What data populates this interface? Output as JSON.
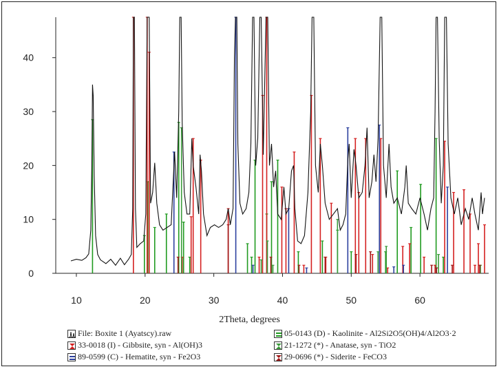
{
  "chart_data": {
    "type": "line",
    "title": "",
    "xlabel": "2Theta, degrees",
    "ylabel": "",
    "xlim": [
      7,
      70
    ],
    "ylim": [
      0,
      47.5
    ],
    "x_ticks": [
      "10",
      "20",
      "30",
      "40",
      "50",
      "60"
    ],
    "y_ticks": [
      "0",
      "10",
      "20",
      "30",
      "40"
    ],
    "grid": false,
    "legend_position": "bottom",
    "pattern": [
      [
        9.2,
        2.3
      ],
      [
        10.0,
        2.6
      ],
      [
        10.8,
        2.4
      ],
      [
        11.4,
        2.9
      ],
      [
        11.8,
        3.6
      ],
      [
        12.1,
        8
      ],
      [
        12.25,
        20
      ],
      [
        12.35,
        35
      ],
      [
        12.45,
        33
      ],
      [
        12.6,
        18
      ],
      [
        12.8,
        7
      ],
      [
        13.1,
        3.5
      ],
      [
        13.5,
        2.5
      ],
      [
        14.3,
        1.8
      ],
      [
        15.0,
        2.6
      ],
      [
        15.7,
        1.5
      ],
      [
        16.4,
        2.8
      ],
      [
        17.0,
        1.6
      ],
      [
        17.6,
        2.6
      ],
      [
        18.0,
        3.5
      ],
      [
        18.2,
        12
      ],
      [
        18.3,
        47.5
      ],
      [
        18.45,
        47.5
      ],
      [
        18.6,
        12
      ],
      [
        18.8,
        4.8
      ],
      [
        19.3,
        5.5
      ],
      [
        19.8,
        6
      ],
      [
        20.1,
        11
      ],
      [
        20.3,
        47.5
      ],
      [
        20.6,
        47.5
      ],
      [
        20.8,
        13
      ],
      [
        21.1,
        15
      ],
      [
        21.4,
        20.5
      ],
      [
        21.7,
        13
      ],
      [
        22.1,
        9
      ],
      [
        22.6,
        8
      ],
      [
        23.2,
        8.5
      ],
      [
        23.8,
        9
      ],
      [
        24.3,
        22.5
      ],
      [
        24.6,
        14
      ],
      [
        24.9,
        30
      ],
      [
        25.05,
        47.5
      ],
      [
        25.25,
        47.5
      ],
      [
        25.4,
        28
      ],
      [
        25.7,
        15
      ],
      [
        26.1,
        11
      ],
      [
        26.5,
        11
      ],
      [
        26.8,
        25
      ],
      [
        27.0,
        20
      ],
      [
        27.4,
        16
      ],
      [
        27.8,
        11
      ],
      [
        28.0,
        22
      ],
      [
        28.2,
        19
      ],
      [
        28.5,
        11
      ],
      [
        29.0,
        7
      ],
      [
        29.5,
        8.5
      ],
      [
        30.1,
        9
      ],
      [
        30.7,
        8.5
      ],
      [
        31.3,
        9
      ],
      [
        31.8,
        10
      ],
      [
        32.1,
        12
      ],
      [
        32.4,
        9
      ],
      [
        32.8,
        12
      ],
      [
        33.0,
        40
      ],
      [
        33.15,
        47.5
      ],
      [
        33.35,
        47.5
      ],
      [
        33.5,
        24
      ],
      [
        33.8,
        13
      ],
      [
        34.2,
        11
      ],
      [
        34.7,
        12
      ],
      [
        35.1,
        15
      ],
      [
        35.4,
        24
      ],
      [
        35.65,
        47.5
      ],
      [
        35.85,
        47.5
      ],
      [
        36.1,
        20
      ],
      [
        36.4,
        25
      ],
      [
        36.7,
        47.5
      ],
      [
        36.9,
        47.5
      ],
      [
        37.2,
        22
      ],
      [
        37.6,
        47.5
      ],
      [
        37.85,
        47.5
      ],
      [
        38.1,
        20
      ],
      [
        38.4,
        24
      ],
      [
        38.7,
        16
      ],
      [
        39.0,
        19
      ],
      [
        39.3,
        11
      ],
      [
        39.8,
        10
      ],
      [
        40.2,
        16
      ],
      [
        40.5,
        11
      ],
      [
        40.9,
        12
      ],
      [
        41.3,
        19
      ],
      [
        41.6,
        20
      ],
      [
        41.8,
        12
      ],
      [
        42.2,
        6
      ],
      [
        42.7,
        5.5
      ],
      [
        43.2,
        7
      ],
      [
        43.7,
        15
      ],
      [
        44.1,
        30
      ],
      [
        44.3,
        47.5
      ],
      [
        44.55,
        47.5
      ],
      [
        44.8,
        20
      ],
      [
        45.2,
        15
      ],
      [
        45.5,
        24
      ],
      [
        45.8,
        20
      ],
      [
        46.2,
        13
      ],
      [
        46.8,
        10
      ],
      [
        47.4,
        11
      ],
      [
        48.0,
        12
      ],
      [
        48.4,
        8
      ],
      [
        48.8,
        9
      ],
      [
        49.2,
        11
      ],
      [
        49.5,
        21
      ],
      [
        49.7,
        24
      ],
      [
        50.0,
        14
      ],
      [
        50.4,
        23
      ],
      [
        50.7,
        20
      ],
      [
        51.1,
        14
      ],
      [
        51.6,
        15
      ],
      [
        52.0,
        20
      ],
      [
        52.3,
        27
      ],
      [
        52.6,
        14
      ],
      [
        53.0,
        17
      ],
      [
        53.3,
        22
      ],
      [
        53.6,
        17
      ],
      [
        53.9,
        25
      ],
      [
        54.2,
        47.5
      ],
      [
        54.45,
        47.5
      ],
      [
        54.7,
        20
      ],
      [
        55.1,
        14
      ],
      [
        55.5,
        24
      ],
      [
        55.8,
        16
      ],
      [
        56.2,
        13
      ],
      [
        56.7,
        14
      ],
      [
        57.3,
        11
      ],
      [
        57.8,
        16
      ],
      [
        58.0,
        20
      ],
      [
        58.3,
        13
      ],
      [
        58.8,
        12
      ],
      [
        59.4,
        11
      ],
      [
        60.0,
        14
      ],
      [
        60.6,
        11
      ],
      [
        61.1,
        8
      ],
      [
        61.6,
        12
      ],
      [
        62.0,
        14
      ],
      [
        62.2,
        30
      ],
      [
        62.35,
        47.5
      ],
      [
        62.55,
        47.5
      ],
      [
        62.8,
        25
      ],
      [
        63.1,
        13
      ],
      [
        63.4,
        20
      ],
      [
        63.6,
        47.5
      ],
      [
        63.85,
        47.5
      ],
      [
        64.1,
        24
      ],
      [
        64.5,
        14
      ],
      [
        65.0,
        11
      ],
      [
        65.5,
        14
      ],
      [
        66.0,
        9
      ],
      [
        66.6,
        12
      ],
      [
        67.1,
        10
      ],
      [
        67.6,
        14
      ],
      [
        68.0,
        11
      ],
      [
        68.5,
        8
      ],
      [
        68.9,
        15
      ],
      [
        69.1,
        11
      ],
      [
        69.4,
        14
      ]
    ],
    "reference_lines": [
      {
        "pattern": "05-0143 (D) - Kaolinite - Al2Si2O5(OH)4/Al2O3·2",
        "color": "#1f9a1f",
        "peaks": [
          [
            12.35,
            28.5
          ],
          [
            19.9,
            7
          ],
          [
            20.4,
            17
          ],
          [
            21.4,
            8.5
          ],
          [
            23.1,
            11
          ],
          [
            24.9,
            28
          ],
          [
            25.6,
            9.5
          ],
          [
            26.5,
            3
          ],
          [
            34.9,
            5.5
          ],
          [
            35.5,
            3
          ],
          [
            36.0,
            21
          ],
          [
            37.7,
            11
          ],
          [
            38.4,
            17
          ],
          [
            39.3,
            21
          ],
          [
            42.3,
            4
          ],
          [
            45.8,
            6
          ],
          [
            48.0,
            8
          ],
          [
            50.0,
            4
          ],
          [
            55.0,
            4
          ],
          [
            56.7,
            19
          ],
          [
            58.7,
            8.5
          ],
          [
            60.1,
            16.5
          ],
          [
            62.35,
            25
          ],
          [
            63.4,
            3
          ]
        ]
      },
      {
        "pattern": "33-0018 (I) - Gibbsite, syn - Al(OH)3",
        "color": "#d42020",
        "peaks": [
          [
            18.3,
            47.5
          ],
          [
            20.3,
            47.5
          ],
          [
            20.6,
            41
          ],
          [
            25.4,
            3
          ],
          [
            26.7,
            10.5
          ],
          [
            27.0,
            25
          ],
          [
            28.1,
            21
          ],
          [
            32.1,
            12
          ],
          [
            36.6,
            3
          ],
          [
            37.1,
            33
          ],
          [
            37.7,
            47.5
          ],
          [
            39.9,
            16
          ],
          [
            40.5,
            12
          ],
          [
            41.7,
            22.5
          ],
          [
            43.1,
            1.5
          ],
          [
            44.2,
            33
          ],
          [
            45.5,
            25
          ],
          [
            46.3,
            3
          ],
          [
            47.1,
            13
          ],
          [
            50.6,
            25
          ],
          [
            51.1,
            15
          ],
          [
            52.1,
            25
          ],
          [
            53.1,
            3.5
          ],
          [
            54.3,
            25
          ],
          [
            55.3,
            1
          ],
          [
            57.5,
            5
          ],
          [
            58.5,
            5.5
          ],
          [
            60.6,
            3
          ],
          [
            62.2,
            1.5
          ],
          [
            63.6,
            24.5
          ],
          [
            64.9,
            15
          ],
          [
            66.4,
            15.5
          ],
          [
            67.3,
            11
          ],
          [
            68.0,
            1.5
          ],
          [
            68.5,
            5.5
          ],
          [
            69.4,
            9
          ]
        ]
      },
      {
        "pattern": "89-0599 (C) - Hematite, syn - Fe2O3",
        "color": "#2b3f9e",
        "peaks": [
          [
            24.2,
            22.5
          ],
          [
            33.2,
            47.5
          ],
          [
            35.7,
            1.5
          ],
          [
            40.9,
            12
          ],
          [
            43.5,
            1
          ],
          [
            49.5,
            27
          ],
          [
            54.1,
            27.5
          ],
          [
            56.2,
            1.2
          ],
          [
            57.6,
            1.5
          ],
          [
            62.4,
            1
          ],
          [
            64.0,
            16
          ]
        ]
      },
      {
        "pattern": "21-1272 (*) - Anatase, syn - TiO2",
        "color": "#3a9a3a",
        "peaks": [
          [
            25.3,
            27
          ],
          [
            36.9,
            2.5
          ],
          [
            37.8,
            6
          ],
          [
            38.6,
            1.5
          ],
          [
            48.0,
            10
          ],
          [
            53.9,
            4
          ],
          [
            55.1,
            5
          ],
          [
            62.7,
            3.5
          ],
          [
            68.8,
            1.5
          ]
        ]
      },
      {
        "pattern": "29-0696 (*) - Siderite - FeCO3",
        "color": "#a01818",
        "peaks": [
          [
            24.8,
            3
          ],
          [
            32.1,
            9
          ],
          [
            38.3,
            3
          ],
          [
            42.4,
            1.5
          ],
          [
            46.2,
            3
          ],
          [
            50.7,
            3.5
          ],
          [
            52.8,
            4
          ],
          [
            61.7,
            1.5
          ],
          [
            62.4,
            1
          ],
          [
            64.7,
            1.5
          ],
          [
            68.7,
            1.5
          ]
        ]
      }
    ],
    "legend": [
      {
        "label": "File: Boxite 1 (Ayatscy).raw",
        "color": "#111111",
        "marker": "pattern-icon"
      },
      {
        "label": "05-0143 (D) - Kaolinite - Al2Si2O5(OH)4/Al2O3·2",
        "color": "#1f9a1f",
        "marker": "bar-equals-icon"
      },
      {
        "label": "33-0018 (I) - Gibbsite, syn - Al(OH)3",
        "color": "#d42020",
        "marker": "hourglass-icon"
      },
      {
        "label": "21-1272 (*) - Anatase, syn - TiO2",
        "color": "#3a9a3a",
        "marker": "hourglass-icon"
      },
      {
        "label": "89-0599 (C) - Hematite, syn - Fe2O3",
        "color": "#2b3f9e",
        "marker": "bar-equals-icon"
      },
      {
        "label": "29-0696 (*) - Siderite - FeCO3",
        "color": "#a01818",
        "marker": "hourglass-icon"
      }
    ]
  }
}
